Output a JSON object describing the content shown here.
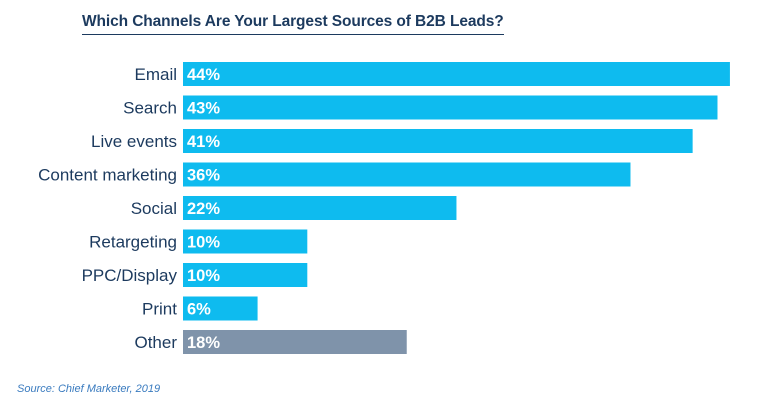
{
  "chart_data": {
    "type": "bar",
    "orientation": "horizontal",
    "title": "Which Channels Are Your Largest Sources of B2B Leads?",
    "categories": [
      "Email",
      "Search",
      "Live events",
      "Content marketing",
      "Social",
      "Retargeting",
      "PPC/Display",
      "Print",
      "Other"
    ],
    "values": [
      44,
      43,
      41,
      36,
      22,
      10,
      10,
      6,
      18
    ],
    "value_labels": [
      "44%",
      "43%",
      "41%",
      "36%",
      "22%",
      "10%",
      "10%",
      "6%",
      "18%"
    ],
    "unit": "%",
    "bar_color": "#0ebbef",
    "highlight_color": "#7f93aa",
    "highlight_category": "Other",
    "grid": false,
    "legend": "none"
  },
  "source": "Source: Chief Marketer, 2019"
}
